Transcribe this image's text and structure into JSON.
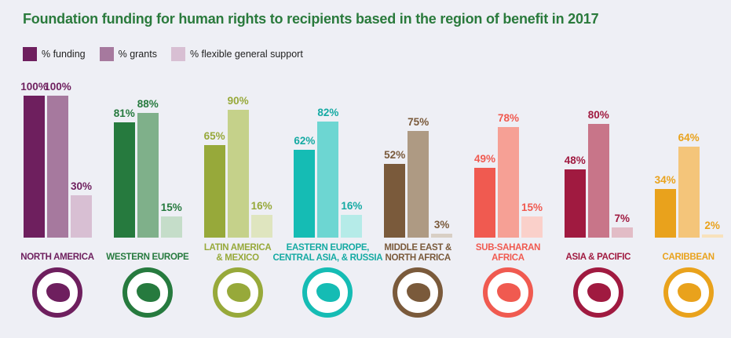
{
  "chart_data": {
    "type": "bar",
    "title": "Foundation funding for human rights to recipients based in the region of benefit in 2017",
    "xlabel": "",
    "ylabel": "",
    "ylim": [
      0,
      100
    ],
    "legend": {
      "placement": "top-left",
      "entries": [
        "% funding",
        "% grants",
        "% flexible general support"
      ]
    },
    "categories": [
      "NORTH AMERICA",
      "WESTERN EUROPE",
      "LATIN AMERICA & MEXICO",
      "EASTERN EUROPE, CENTRAL ASIA, & RUSSIA",
      "MIDDLE EAST & NORTH AFRICA",
      "SUB-SAHARAN AFRICA",
      "ASIA & PACIFIC",
      "CARIBBEAN"
    ],
    "category_lines": [
      [
        "NORTH AMERICA"
      ],
      [
        "WESTERN EUROPE"
      ],
      [
        "LATIN AMERICA",
        "& MEXICO"
      ],
      [
        "EASTERN EUROPE,",
        "CENTRAL ASIA, & RUSSIA"
      ],
      [
        "MIDDLE EAST &",
        "NORTH AFRICA"
      ],
      [
        "SUB-SAHARAN",
        "AFRICA"
      ],
      [
        "ASIA & PACIFIC"
      ],
      [
        "CARIBBEAN"
      ]
    ],
    "series": [
      {
        "name": "% funding",
        "values": [
          100,
          81,
          65,
          62,
          52,
          49,
          48,
          34
        ]
      },
      {
        "name": "% grants",
        "values": [
          100,
          88,
          90,
          82,
          75,
          78,
          80,
          64
        ]
      },
      {
        "name": "% flexible general support",
        "values": [
          30,
          15,
          16,
          16,
          3,
          15,
          7,
          2
        ]
      }
    ],
    "data_labels": [
      [
        "100%",
        "100%",
        "30%"
      ],
      [
        "81%",
        "88%",
        "15%"
      ],
      [
        "65%",
        "90%",
        "16%"
      ],
      [
        "62%",
        "82%",
        "16%"
      ],
      [
        "52%",
        "75%",
        "3%"
      ],
      [
        "49%",
        "78%",
        "15%"
      ],
      [
        "48%",
        "80%",
        "7%"
      ],
      [
        "34%",
        "64%",
        "2%"
      ]
    ]
  },
  "colors": {
    "title": "#2a7a3c",
    "legend": [
      "#6e1f5e",
      "#a6799e",
      "#d8bfd3"
    ],
    "regions": [
      {
        "label": "#6e1f5e",
        "bars": [
          "#6e1f5e",
          "#a6799e",
          "#d8bfd3"
        ],
        "icon": "north-america-map-icon"
      },
      {
        "label": "#267a3e",
        "bars": [
          "#267a3e",
          "#7fb08a",
          "#c5ddc9"
        ],
        "icon": "europe-map-icon"
      },
      {
        "label": "#97a93a",
        "bars": [
          "#97a93a",
          "#c5d18a",
          "#dfe5bf"
        ],
        "icon": "south-america-map-icon"
      },
      {
        "label": "#15aaa3",
        "bars": [
          "#15bcb4",
          "#6dd6d2",
          "#b5ebe8"
        ],
        "icon": "eurasia-map-icon"
      },
      {
        "label": "#7a5a3b",
        "bars": [
          "#7a5a3b",
          "#ae9a83",
          "#d8cfc4"
        ],
        "icon": "middle-east-map-icon"
      },
      {
        "label": "#f05a50",
        "bars": [
          "#f05a50",
          "#f6a095",
          "#fad0ca"
        ],
        "icon": "africa-map-icon"
      },
      {
        "label": "#a01a40",
        "bars": [
          "#a01a40",
          "#c87589",
          "#e2bcc6"
        ],
        "icon": "asia-pacific-map-icon"
      },
      {
        "label": "#e9a21c",
        "bars": [
          "#e9a21c",
          "#f4c57a",
          "#f8e2bc"
        ],
        "icon": "caribbean-map-icon"
      }
    ]
  }
}
